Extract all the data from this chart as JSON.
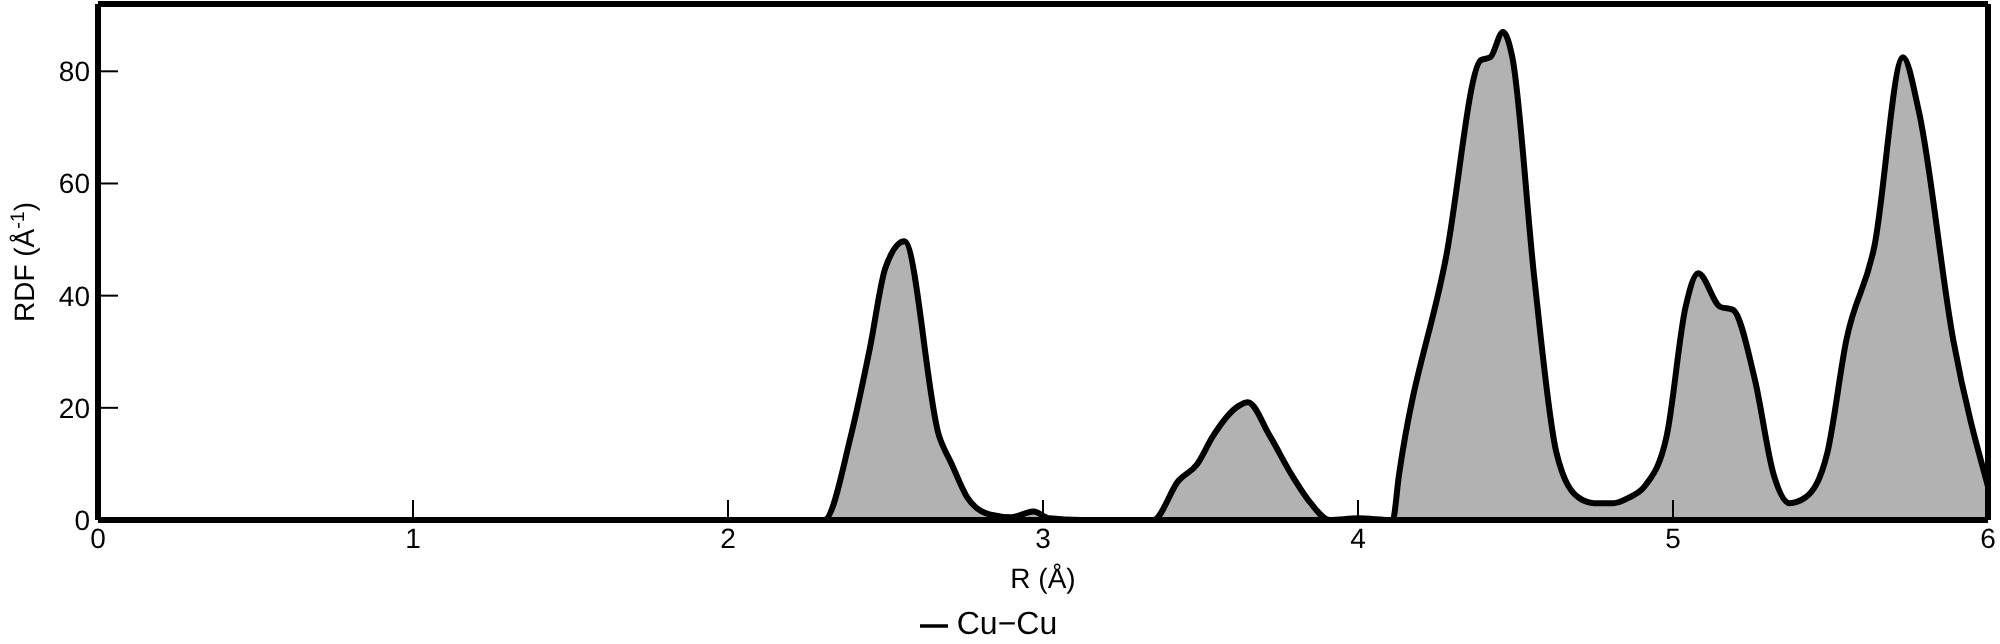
{
  "chart_data": {
    "type": "area",
    "xlabel": "R (Å)",
    "ylabel": "RDF (Å$^{-1}$)",
    "xlim": [
      0,
      6
    ],
    "xticks": [
      0,
      1,
      2,
      3,
      4,
      5,
      6
    ],
    "ylim": [
      0,
      92
    ],
    "yticks": [
      0,
      20,
      40,
      60,
      80
    ],
    "grid": false,
    "legend": "bottom",
    "series": [
      {
        "name": "Cu−Cu",
        "color": "#000000",
        "x": [
          0,
          1,
          2,
          2.305,
          2.39,
          2.45,
          2.5,
          2.56,
          2.67,
          2.71,
          2.76,
          2.83,
          2.9,
          2.97,
          3.02,
          3.12,
          3.35,
          3.43,
          3.49,
          3.54,
          3.62,
          3.65,
          3.72,
          3.79,
          3.85,
          3.91,
          4.0,
          4.11,
          4.13,
          4.28,
          4.39,
          4.42,
          4.46,
          4.49,
          4.56,
          4.63,
          4.7,
          4.75,
          4.81,
          4.86,
          4.91,
          4.98,
          5.04,
          5.08,
          5.15,
          5.19,
          5.26,
          5.32,
          5.37,
          5.42,
          5.49,
          5.55,
          5.64,
          5.73,
          5.78,
          5.89,
          6.0
        ],
        "values": [
          0,
          0,
          0,
          0,
          15,
          30.5,
          45,
          49.7,
          15,
          10,
          4,
          1,
          0.5,
          1.5,
          0.3,
          0,
          0,
          7,
          10,
          15,
          20.3,
          21,
          15,
          8,
          3,
          0,
          0.3,
          0,
          8,
          47,
          82,
          82.5,
          87,
          82.5,
          43,
          12,
          4,
          3,
          3,
          4,
          6,
          15,
          38,
          44,
          38,
          37.5,
          25,
          8,
          3,
          4,
          12,
          32,
          49,
          82.5,
          73,
          32,
          6
        ]
      }
    ]
  }
}
